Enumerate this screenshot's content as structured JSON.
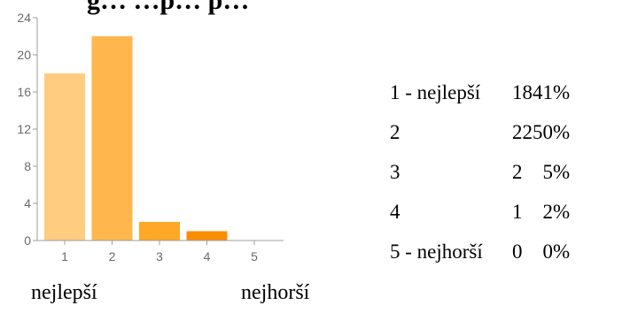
{
  "chart_data": {
    "type": "bar",
    "title": "g…  …p… p…",
    "categories": [
      "1",
      "2",
      "3",
      "4",
      "5"
    ],
    "values": [
      18,
      22,
      2,
      1,
      0
    ],
    "ylim": [
      0,
      24
    ],
    "yticks": [
      0,
      4,
      8,
      12,
      16,
      20,
      24
    ],
    "grid": false,
    "colors": [
      "#ffcc80",
      "#ffb74d",
      "#ffa726",
      "#fb8c00",
      "#ef6c00"
    ]
  },
  "stats": [
    {
      "label": "1 - nejlepší",
      "count": "18",
      "percent": "41%"
    },
    {
      "label": "2",
      "count": "22",
      "percent": "50%"
    },
    {
      "label": "3",
      "count": "2",
      "percent": "5%"
    },
    {
      "label": "4",
      "count": "1",
      "percent": "2%"
    },
    {
      "label": "5 - nejhorší",
      "count": "0",
      "percent": "0%"
    }
  ],
  "scale": {
    "best": "nejlepší",
    "worst": "nejhorší"
  }
}
